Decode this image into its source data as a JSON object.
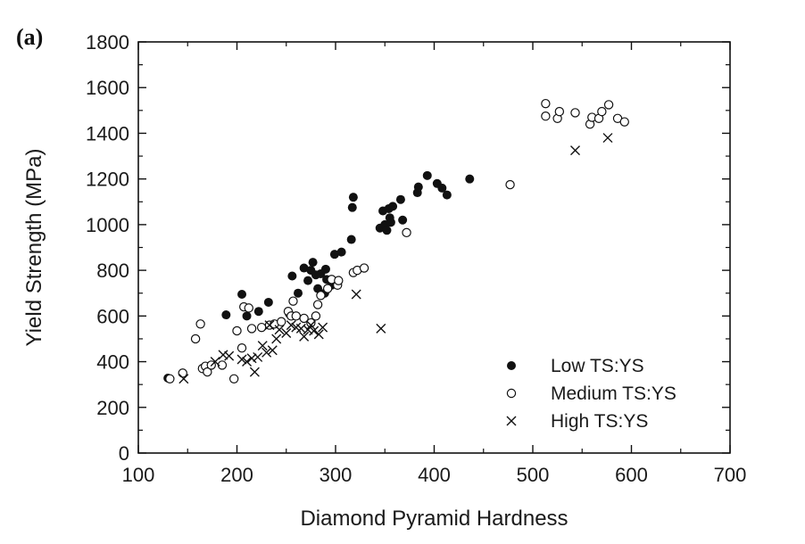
{
  "panel_label": "(a)",
  "chart_data": {
    "type": "scatter",
    "title": "",
    "xlabel": "Diamond Pyramid Hardness",
    "ylabel": "Yield Strength (MPa)",
    "xlim": [
      100,
      700
    ],
    "ylim": [
      0,
      1800
    ],
    "xticks": [
      100,
      200,
      300,
      400,
      500,
      600,
      700
    ],
    "yticks": [
      0,
      200,
      400,
      600,
      800,
      1000,
      1200,
      1400,
      1600,
      1800
    ],
    "grid": false,
    "legend_position": "bottom-right",
    "series": [
      {
        "name": "Low TS:YS",
        "marker": "filled-circle",
        "color": "#111111",
        "points": [
          [
            130,
            328
          ],
          [
            189,
            605
          ],
          [
            205,
            695
          ],
          [
            210,
            600
          ],
          [
            222,
            620
          ],
          [
            232,
            660
          ],
          [
            253,
            610
          ],
          [
            256,
            775
          ],
          [
            262,
            700
          ],
          [
            268,
            810
          ],
          [
            272,
            755
          ],
          [
            275,
            800
          ],
          [
            277,
            835
          ],
          [
            282,
            720
          ],
          [
            285,
            785
          ],
          [
            290,
            805
          ],
          [
            296,
            735
          ],
          [
            299,
            870
          ],
          [
            306,
            880
          ],
          [
            316,
            935
          ],
          [
            317,
            1075
          ],
          [
            318,
            1120
          ],
          [
            345,
            985
          ],
          [
            348,
            1060
          ],
          [
            350,
            1000
          ],
          [
            352,
            975
          ],
          [
            354,
            1070
          ],
          [
            356,
            1010
          ],
          [
            358,
            1080
          ],
          [
            366,
            1110
          ],
          [
            368,
            1020
          ],
          [
            383,
            1140
          ],
          [
            384,
            1165
          ],
          [
            393,
            1215
          ],
          [
            403,
            1180
          ],
          [
            408,
            1160
          ],
          [
            413,
            1130
          ],
          [
            436,
            1200
          ],
          [
            355,
            1030
          ],
          [
            291,
            760
          ],
          [
            289,
            700
          ],
          [
            280,
            780
          ]
        ]
      },
      {
        "name": "Medium TS:YS",
        "marker": "open-circle",
        "color": "#111111",
        "points": [
          [
            132,
            325
          ],
          [
            145,
            350
          ],
          [
            158,
            500
          ],
          [
            163,
            565
          ],
          [
            165,
            370
          ],
          [
            168,
            380
          ],
          [
            170,
            355
          ],
          [
            174,
            385
          ],
          [
            185,
            385
          ],
          [
            197,
            325
          ],
          [
            200,
            535
          ],
          [
            205,
            460
          ],
          [
            207,
            640
          ],
          [
            212,
            635
          ],
          [
            215,
            545
          ],
          [
            225,
            550
          ],
          [
            233,
            560
          ],
          [
            238,
            565
          ],
          [
            245,
            575
          ],
          [
            252,
            620
          ],
          [
            255,
            600
          ],
          [
            257,
            665
          ],
          [
            260,
            600
          ],
          [
            268,
            590
          ],
          [
            275,
            570
          ],
          [
            280,
            600
          ],
          [
            282,
            650
          ],
          [
            285,
            690
          ],
          [
            292,
            720
          ],
          [
            296,
            760
          ],
          [
            302,
            735
          ],
          [
            303,
            755
          ],
          [
            318,
            790
          ],
          [
            322,
            800
          ],
          [
            329,
            810
          ],
          [
            372,
            965
          ],
          [
            477,
            1175
          ],
          [
            513,
            1530
          ],
          [
            513,
            1475
          ],
          [
            525,
            1465
          ],
          [
            527,
            1495
          ],
          [
            543,
            1490
          ],
          [
            558,
            1440
          ],
          [
            560,
            1470
          ],
          [
            567,
            1465
          ],
          [
            570,
            1495
          ],
          [
            577,
            1525
          ],
          [
            586,
            1465
          ],
          [
            593,
            1450
          ]
        ]
      },
      {
        "name": "High TS:YS",
        "marker": "cross",
        "color": "#111111",
        "points": [
          [
            146,
            325
          ],
          [
            178,
            400
          ],
          [
            186,
            430
          ],
          [
            192,
            425
          ],
          [
            205,
            410
          ],
          [
            210,
            400
          ],
          [
            215,
            415
          ],
          [
            218,
            355
          ],
          [
            221,
            420
          ],
          [
            226,
            470
          ],
          [
            230,
            440
          ],
          [
            233,
            560
          ],
          [
            236,
            450
          ],
          [
            240,
            500
          ],
          [
            243,
            540
          ],
          [
            250,
            525
          ],
          [
            255,
            560
          ],
          [
            260,
            550
          ],
          [
            265,
            545
          ],
          [
            268,
            510
          ],
          [
            272,
            540
          ],
          [
            275,
            560
          ],
          [
            278,
            535
          ],
          [
            283,
            520
          ],
          [
            287,
            550
          ],
          [
            321,
            695
          ],
          [
            346,
            545
          ],
          [
            543,
            1325
          ],
          [
            576,
            1380
          ]
        ]
      }
    ]
  }
}
